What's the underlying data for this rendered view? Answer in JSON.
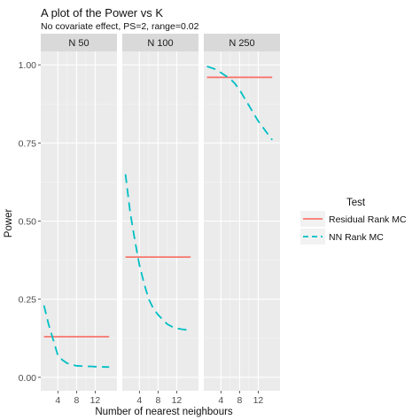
{
  "chart_data": {
    "type": "line",
    "title": "A plot of the Power vs K",
    "subtitle": "No covariate effect, PS=2, range=0.02",
    "xlabel": "Number of nearest neighbours",
    "ylabel": "Power",
    "xlim": [
      1,
      16
    ],
    "ylim": [
      0,
      1
    ],
    "xticks": [
      4,
      8,
      12
    ],
    "yticks": [
      0.0,
      0.25,
      0.5,
      0.75,
      1.0
    ],
    "ytick_labels": [
      "0.00",
      "0.25",
      "0.50",
      "0.75",
      "1.00"
    ],
    "grid": true,
    "legend": {
      "title": "Test",
      "position": "right",
      "entries": [
        {
          "label": "Residual Rank MC",
          "color": "#F8766D",
          "linetype": "solid"
        },
        {
          "label": "NN Rank MC",
          "color": "#00BFC4",
          "linetype": "dashed"
        }
      ]
    },
    "panels": [
      {
        "label": "N 50",
        "series": [
          {
            "name": "Residual Rank MC",
            "x": [
              1,
              15
            ],
            "y": [
              0.13,
              0.13
            ]
          },
          {
            "name": "NN Rank MC",
            "x": [
              1,
              2,
              3,
              4,
              5,
              6,
              7,
              8,
              9,
              10,
              11,
              12,
              13,
              14,
              15
            ],
            "y": [
              0.23,
              0.17,
              0.12,
              0.07,
              0.055,
              0.045,
              0.04,
              0.037,
              0.036,
              0.035,
              0.035,
              0.034,
              0.034,
              0.033,
              0.033
            ]
          }
        ]
      },
      {
        "label": "N 100",
        "series": [
          {
            "name": "Residual Rank MC",
            "x": [
              1,
              15
            ],
            "y": [
              0.385,
              0.385
            ]
          },
          {
            "name": "NN Rank MC",
            "x": [
              1,
              2,
              3,
              4,
              5,
              6,
              7,
              8,
              9,
              10,
              11,
              12,
              13,
              14,
              15
            ],
            "y": [
              0.65,
              0.53,
              0.44,
              0.36,
              0.3,
              0.25,
              0.22,
              0.2,
              0.185,
              0.17,
              0.162,
              0.157,
              0.154,
              0.152,
              0.151
            ]
          }
        ]
      },
      {
        "label": "N 250",
        "series": [
          {
            "name": "Residual Rank MC",
            "x": [
              1,
              15
            ],
            "y": [
              0.96,
              0.96
            ]
          },
          {
            "name": "NN Rank MC",
            "x": [
              1,
              2,
              3,
              4,
              5,
              6,
              7,
              8,
              9,
              10,
              11,
              12,
              13,
              14,
              15
            ],
            "y": [
              0.995,
              0.99,
              0.985,
              0.975,
              0.965,
              0.955,
              0.94,
              0.92,
              0.895,
              0.87,
              0.845,
              0.82,
              0.8,
              0.78,
              0.76
            ]
          }
        ]
      }
    ]
  }
}
